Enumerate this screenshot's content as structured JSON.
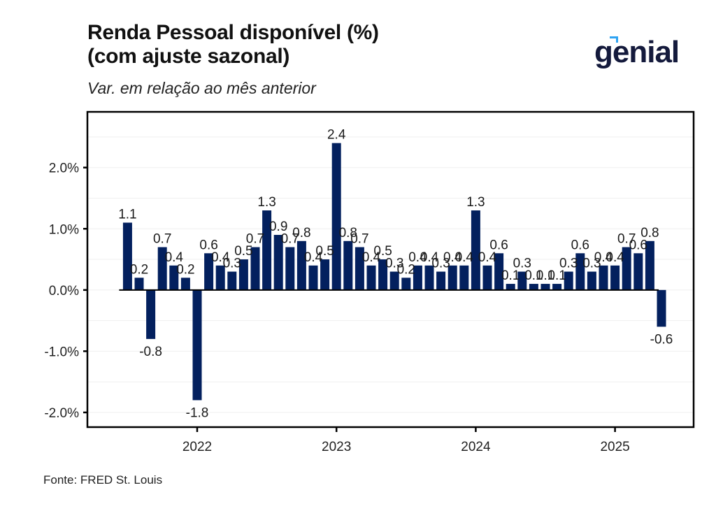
{
  "header": {
    "title_line1": "Renda Pessoal disponível (%)",
    "title_line2": "(com ajuste sazonal)",
    "subtitle": "Var. em relação ao mês anterior",
    "logo_text": "genial"
  },
  "footer": {
    "source": "Fonte: FRED St. Louis"
  },
  "colors": {
    "bar": "#03205e",
    "logo": "#141a3c",
    "logo_accent": "#2ea3f2"
  },
  "chart_data": {
    "type": "bar",
    "title": "Renda Pessoal disponível (%) (com ajuste sazonal)",
    "subtitle": "Var. em relação ao mês anterior",
    "xlabel": "",
    "ylabel": "",
    "ylim": [
      -2.24,
      2.91
    ],
    "yticks": [
      -2.0,
      -1.0,
      0.0,
      1.0,
      2.0
    ],
    "ytick_labels": [
      "-2.0%",
      "-1.0%",
      "0.0%",
      "1.0%",
      "2.0%"
    ],
    "xticks": [
      "2022-01",
      "2023-01",
      "2024-01",
      "2025-01"
    ],
    "xtick_labels": [
      "2022",
      "2023",
      "2024",
      "2025"
    ],
    "grid": true,
    "legend": "none",
    "categories": [
      "2021-07",
      "2021-08",
      "2021-09",
      "2021-10",
      "2021-11",
      "2021-12",
      "2022-01",
      "2022-02",
      "2022-03",
      "2022-04",
      "2022-05",
      "2022-06",
      "2022-07",
      "2022-08",
      "2022-09",
      "2022-10",
      "2022-11",
      "2022-12",
      "2023-01",
      "2023-02",
      "2023-03",
      "2023-04",
      "2023-05",
      "2023-06",
      "2023-07",
      "2023-08",
      "2023-09",
      "2023-10",
      "2023-11",
      "2023-12",
      "2024-01",
      "2024-02",
      "2024-03",
      "2024-04",
      "2024-05",
      "2024-06",
      "2024-07",
      "2024-08",
      "2024-09",
      "2024-10",
      "2024-11",
      "2024-12",
      "2025-01",
      "2025-02",
      "2025-03",
      "2025-04",
      "2025-05"
    ],
    "values": [
      1.1,
      0.2,
      -0.8,
      0.7,
      0.4,
      0.2,
      -1.8,
      0.6,
      0.4,
      0.3,
      0.5,
      0.7,
      1.3,
      0.9,
      0.7,
      0.8,
      0.4,
      0.5,
      2.4,
      0.8,
      0.7,
      0.4,
      0.5,
      0.3,
      0.2,
      0.4,
      0.4,
      0.3,
      0.4,
      0.4,
      1.3,
      0.4,
      0.6,
      0.1,
      0.3,
      0.1,
      0.1,
      0.1,
      0.3,
      0.6,
      0.3,
      0.4,
      0.4,
      0.7,
      0.6,
      0.8,
      -0.6
    ],
    "source": "Fonte: FRED St. Louis"
  }
}
